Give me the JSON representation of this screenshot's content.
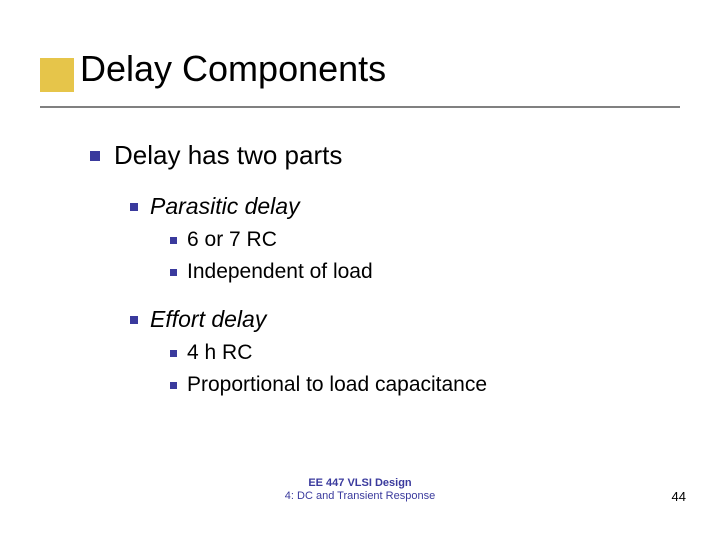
{
  "title": "Delay Components",
  "accent_color": "#e6c54a",
  "bullet_color": "#3a3a9d",
  "underline_color": "#808080",
  "content": {
    "lvl1": "Delay has two parts",
    "section1": {
      "heading": "Parasitic delay",
      "items": [
        "6 or 7 RC",
        "Independent of load"
      ]
    },
    "section2": {
      "heading": "Effort delay",
      "items": [
        "4 h RC",
        "Proportional to load capacitance"
      ]
    }
  },
  "footer": {
    "line1": "EE 447 VLSI Design",
    "line2": "4: DC and Transient Response"
  },
  "page_number": "44",
  "fonts": {
    "title_size": 36,
    "lvl1_size": 26,
    "lvl2_size": 23,
    "lvl3_size": 21,
    "footer_size": 11
  }
}
